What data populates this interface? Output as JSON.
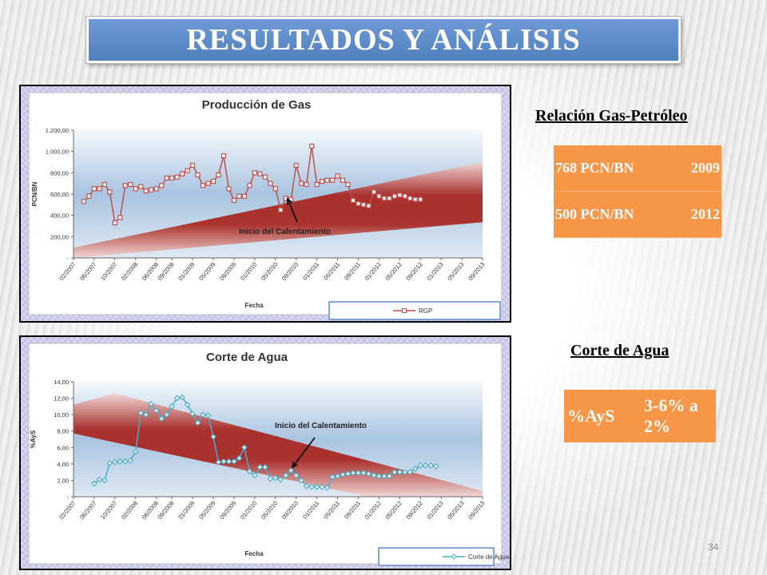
{
  "title": "RESULTADOS Y ANÁLISIS",
  "slide_number": "34",
  "colors": {
    "title_bg": "#4f81bd",
    "table_bg": "#f79646",
    "gas_series": "#c0504d",
    "water_series": "#4bacc6"
  },
  "gas_section": {
    "heading": "Relación Gas-Petróleo",
    "rows": [
      {
        "value": "768 PCN/BN",
        "year": "2009"
      },
      {
        "value": "500 PCN/BN",
        "year": "2012"
      }
    ]
  },
  "water_section": {
    "heading": "Corte de Agua",
    "label": "%AyS",
    "value": "3-6% a 2%"
  },
  "chart_data": [
    {
      "type": "line",
      "title": "Producción de Gas",
      "xlabel": "Fecha",
      "ylabel": "PCN/BN",
      "ylim": [
        0,
        1200
      ],
      "y_ticks": [
        "-",
        "200,00",
        "400,00",
        "600,00",
        "800,00",
        "1.000,00",
        "1.200,00"
      ],
      "x_ticks": [
        "02/2007",
        "06/2007",
        "10/2007",
        "02/2008",
        "06/2008",
        "09/2008",
        "01/2009",
        "05/2009",
        "09/2009",
        "01/2010",
        "05/2010",
        "09/2010",
        "01/2011",
        "05/2011",
        "09/2011",
        "01/2012",
        "05/2012",
        "09/2012",
        "01/2013",
        "05/2013",
        "09/2013"
      ],
      "annotation": "Inicio del Calentamiento",
      "legend_position": "bottom-right",
      "series": [
        {
          "name": "RGP",
          "x_start": "04/2007",
          "values": [
            530,
            580,
            650,
            650,
            690,
            620,
            330,
            380,
            680,
            690,
            650,
            670,
            630,
            640,
            650,
            680,
            750,
            750,
            760,
            790,
            820,
            870,
            780,
            680,
            700,
            720,
            780,
            960,
            650,
            540,
            580,
            580,
            680,
            800,
            790,
            760,
            700,
            650,
            450,
            560,
            550,
            870,
            700,
            690,
            1050,
            690,
            720,
            730,
            730,
            770,
            730,
            690,
            540,
            510,
            500,
            490,
            620,
            580,
            560,
            560,
            580,
            590,
            580,
            560,
            550,
            550
          ]
        }
      ]
    },
    {
      "type": "line",
      "title": "Corte de Agua",
      "xlabel": "Fecha",
      "ylabel": "%AyS",
      "ylim": [
        0,
        14
      ],
      "y_ticks": [
        "-",
        "2,00",
        "4,00",
        "6,00",
        "8,00",
        "10,00",
        "12,00",
        "14,00"
      ],
      "x_ticks": [
        "02/2007",
        "06/2007",
        "10/2007",
        "02/2008",
        "06/2008",
        "09/2008",
        "01/2009",
        "05/2009",
        "09/2009",
        "01/2010",
        "05/2010",
        "09/2010",
        "01/2011",
        "05/2011",
        "09/2011",
        "01/2012",
        "05/2012",
        "09/2012",
        "01/2013",
        "05/2013",
        "09/2013"
      ],
      "annotation": "Inicio del Calentamiento",
      "legend_position": "bottom-right",
      "series": [
        {
          "name": "Corte de Agua",
          "x_start": "06/2007",
          "values": [
            1.6,
            2.1,
            2.0,
            4.1,
            4.2,
            4.3,
            4.3,
            4.4,
            5.5,
            10.2,
            10.0,
            11.3,
            10.5,
            9.5,
            10.0,
            11.0,
            12.0,
            12.1,
            11.2,
            10.1,
            9.0,
            10.0,
            9.9,
            7.3,
            4.2,
            4.3,
            4.3,
            4.3,
            4.7,
            6.0,
            3.1,
            2.6,
            3.6,
            3.6,
            2.2,
            2.3,
            2.1,
            2.6,
            3.2,
            2.6,
            2.0,
            1.3,
            1.2,
            1.2,
            1.2,
            1.1,
            2.4,
            2.5,
            2.7,
            2.8,
            2.9,
            2.9,
            2.9,
            2.8,
            2.6,
            2.5,
            2.5,
            2.5,
            3.0,
            3.0,
            3.0,
            3.0,
            3.4,
            3.8,
            3.8,
            3.8,
            3.7
          ]
        }
      ]
    }
  ]
}
